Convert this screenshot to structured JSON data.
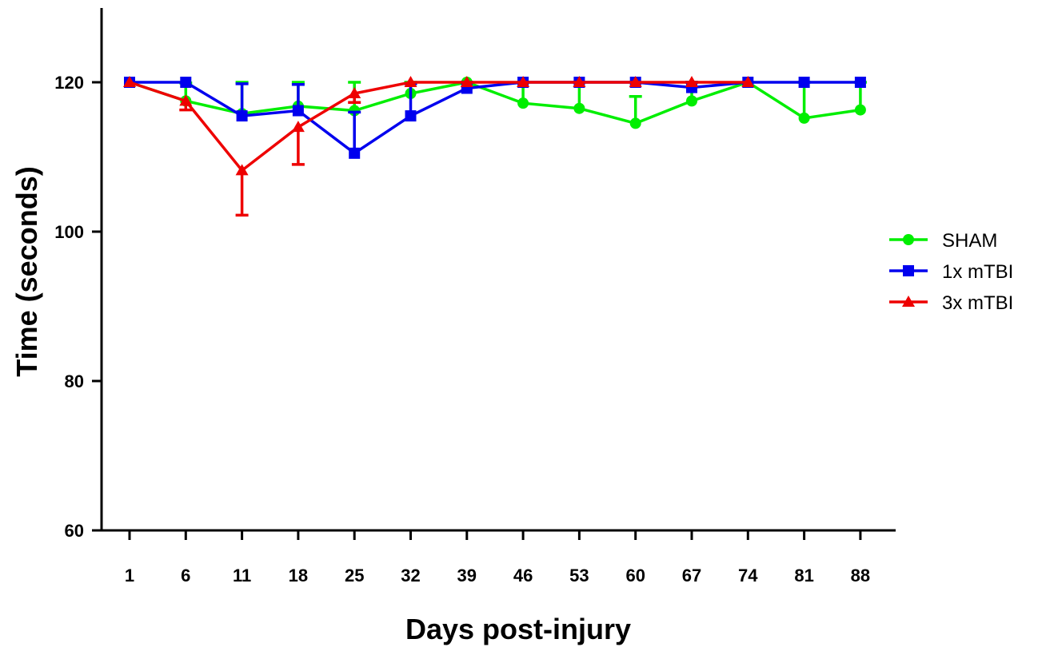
{
  "chart_data": {
    "type": "line",
    "xlabel": "Days post-injury",
    "ylabel": "Time (seconds)",
    "categories": [
      "1",
      "6",
      "11",
      "18",
      "25",
      "32",
      "39",
      "46",
      "53",
      "60",
      "67",
      "74",
      "81",
      "88"
    ],
    "ylim": [
      60,
      130
    ],
    "yticks": [
      "60",
      "80",
      "100",
      "120"
    ],
    "legend_position": "right",
    "series": [
      {
        "name": "SHAM",
        "color": "#00ee00",
        "marker": "circle",
        "values": [
          120,
          117.5,
          115.8,
          116.8,
          116.2,
          118.5,
          120,
          117.2,
          116.5,
          114.5,
          117.5,
          120,
          115.2,
          116.3
        ],
        "error": [
          0,
          2.4,
          4.2,
          3.2,
          3.8,
          1.5,
          0,
          2.8,
          3.5,
          3.6,
          3.6,
          0,
          4.8,
          3.7
        ]
      },
      {
        "name": "1x mTBI",
        "color": "#0000ee",
        "marker": "square",
        "values": [
          120,
          120,
          115.5,
          116.2,
          110.5,
          115.5,
          119.2,
          120,
          120,
          120,
          119.3,
          120,
          120,
          120
        ],
        "error": [
          0,
          0,
          4.3,
          3.5,
          5.5,
          4.3,
          0.8,
          0,
          0,
          0,
          0.7,
          0,
          0,
          0
        ]
      },
      {
        "name": "3x mTBI",
        "color": "#ee0000",
        "marker": "triangle",
        "values": [
          120,
          117.5,
          108.2,
          114,
          118.5,
          120,
          120,
          120,
          120,
          120,
          120,
          120,
          null,
          null
        ],
        "error": [
          0,
          1.2,
          6,
          5,
          1.2,
          0,
          0,
          0,
          0,
          0,
          0,
          0,
          null,
          null
        ]
      }
    ]
  }
}
